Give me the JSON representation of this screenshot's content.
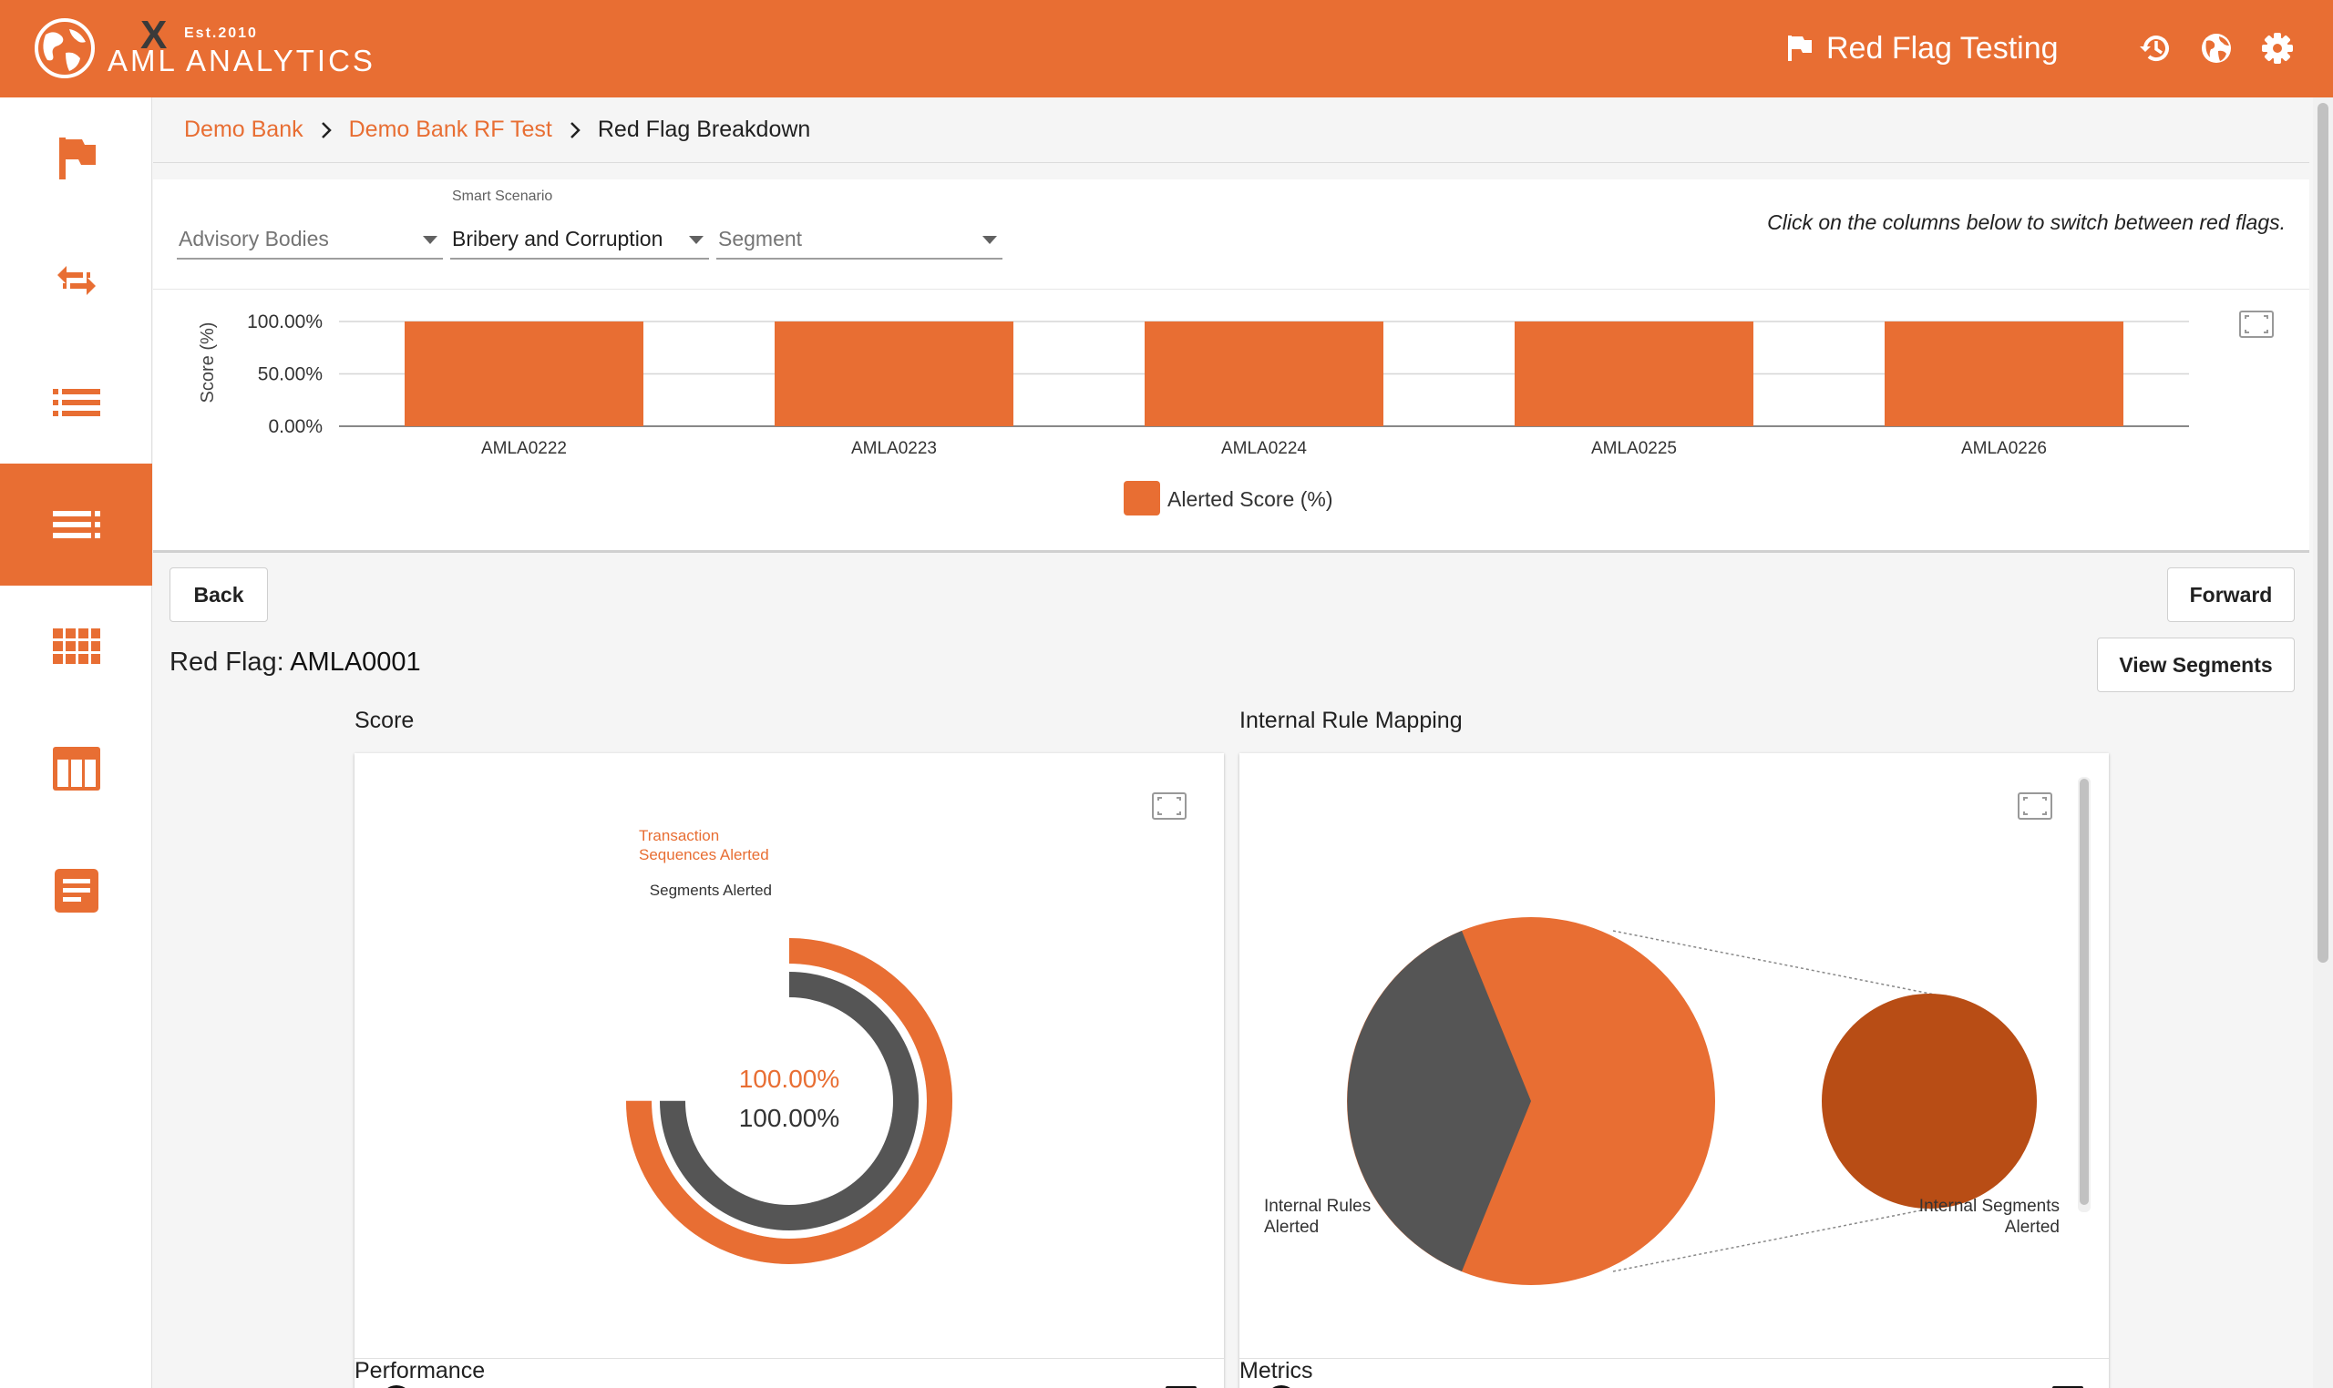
{
  "app": {
    "logo_est": "Est.2010",
    "logo_name": "AML ANALYTICS",
    "title": "Red Flag Testing",
    "icons": [
      "flag-icon",
      "history-icon",
      "globe-icon",
      "gear-icon"
    ]
  },
  "sidebar": {
    "items": [
      {
        "name": "red-flags",
        "icon": "flag-icon",
        "active": false
      },
      {
        "name": "transfers",
        "icon": "arrows-exchange-icon",
        "active": false
      },
      {
        "name": "list",
        "icon": "list-icon",
        "active": false
      },
      {
        "name": "breakdown",
        "icon": "detail-list-icon",
        "active": true
      },
      {
        "name": "grid",
        "icon": "grid-icon",
        "active": false
      },
      {
        "name": "table",
        "icon": "table-columns-icon",
        "active": false
      },
      {
        "name": "document",
        "icon": "document-icon",
        "active": false
      }
    ]
  },
  "breadcrumb": {
    "items": [
      "Demo Bank",
      "Demo Bank RF Test"
    ],
    "current": "Red Flag Breakdown"
  },
  "filters": {
    "advisory_bodies": {
      "placeholder": "Advisory Bodies"
    },
    "smart_scenario": {
      "label": "Smart Scenario",
      "value": "Bribery and Corruption"
    },
    "segment": {
      "placeholder": "Segment"
    },
    "hint": "Click on the columns below to switch between red flags."
  },
  "chart_data": [
    {
      "type": "bar",
      "title": "",
      "xlabel": "",
      "ylabel": "Score (%)",
      "categories": [
        "AMLA0222",
        "AMLA0223",
        "AMLA0224",
        "AMLA0225",
        "AMLA0226"
      ],
      "series": [
        {
          "name": "Alerted Score (%)",
          "values": [
            100,
            100,
            100,
            100,
            100
          ]
        }
      ],
      "yticks": [
        "0.00%",
        "50.00%",
        "100.00%"
      ],
      "ylim": [
        0,
        100
      ],
      "color": "#e86e33",
      "legend": "bottom-center",
      "grid": true
    },
    {
      "type": "radial-bar",
      "title": "Score",
      "series": [
        {
          "name": "Transaction Sequences Alerted",
          "value": 100,
          "color": "#e86e33"
        },
        {
          "name": "Segments Alerted",
          "value": 100,
          "color": "#555555"
        }
      ],
      "center_labels": [
        "100.00%",
        "100.00%"
      ]
    },
    {
      "type": "pie",
      "title": "Internal Rule Mapping",
      "slices": [
        {
          "value": 60,
          "color": "#e86e33"
        },
        {
          "value": 40,
          "color": "#555555"
        }
      ],
      "drilldown": {
        "value": 100,
        "color": "#b84d15"
      },
      "labels": [
        "Internal Rules Alerted",
        "Internal Segments Alerted"
      ]
    }
  ],
  "buttons": {
    "back": "Back",
    "forward": "Forward",
    "view_segments": "View Segments"
  },
  "red_flag": {
    "label": "Red Flag:",
    "id": "AMLA0001"
  },
  "sections": {
    "score": "Score",
    "internal_rule_mapping": "Internal Rule Mapping",
    "performance": "Performance",
    "metrics": "Metrics"
  },
  "donut": {
    "outer_label_line1": "Transaction",
    "outer_label_line2": "Sequences Alerted",
    "inner_label": "Segments Alerted",
    "value_outer": "100.00%",
    "value_inner": "100.00%"
  },
  "pie": {
    "label_left_1": "Internal Rules",
    "label_left_2": "Alerted",
    "label_right_1": "Internal Segments",
    "label_right_2": "Alerted"
  },
  "colors": {
    "accent": "#e86e33",
    "dark": "#555555",
    "drill": "#b84d15"
  }
}
